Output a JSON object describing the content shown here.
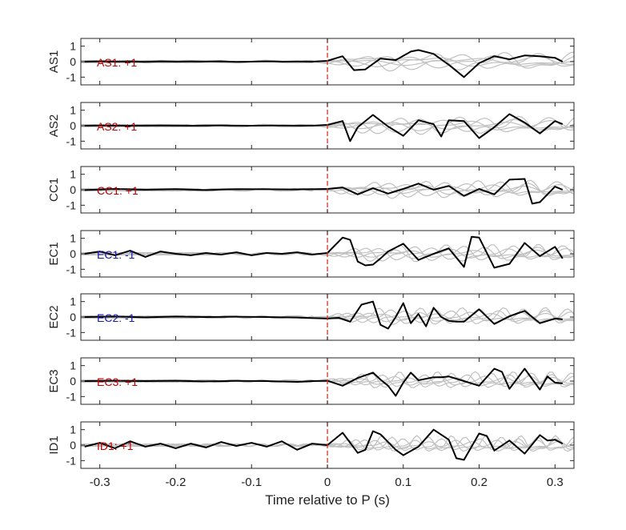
{
  "chart_data": {
    "type": "line",
    "xlabel": "Time relative to P (s)",
    "xlim": [
      -0.325,
      0.325
    ],
    "xticks": [
      -0.3,
      -0.2,
      -0.1,
      0,
      0.1,
      0.2,
      0.3
    ],
    "xtick_labels": [
      "-0.3",
      "-0.2",
      "-0.1",
      "0",
      "0.1",
      "0.2",
      "0.3"
    ],
    "ylim": [
      -1.5,
      1.5
    ],
    "yticks": [
      -1,
      0,
      1
    ],
    "ytick_labels": [
      "-1",
      "0",
      "1"
    ],
    "grid": false,
    "marker_line": {
      "x": 0,
      "color": "#e03020",
      "style": "dashed"
    },
    "colors": {
      "main": "#000000",
      "background_traces": "#c0c0c0",
      "positive_label": "#c00000",
      "negative_label": "#1a1aaa"
    },
    "panels": [
      {
        "station": "AS1",
        "annotation": "AS1: +1",
        "polarity": "+1",
        "x": [
          -0.32,
          -0.3,
          -0.28,
          -0.26,
          -0.24,
          -0.22,
          -0.2,
          -0.18,
          -0.16,
          -0.14,
          -0.12,
          -0.1,
          -0.08,
          -0.06,
          -0.04,
          -0.02,
          0,
          0.02,
          0.035,
          0.05,
          0.07,
          0.09,
          0.11,
          0.12,
          0.14,
          0.16,
          0.18,
          0.2,
          0.22,
          0.24,
          0.26,
          0.28,
          0.3,
          0.31
        ],
        "y": [
          0,
          0.02,
          0,
          0.01,
          -0.01,
          0.02,
          0,
          0.01,
          0,
          0.02,
          -0.01,
          0,
          0.02,
          0,
          0.01,
          0,
          0.05,
          0.35,
          -0.55,
          -0.5,
          0.2,
          0.1,
          0.65,
          0.75,
          0.5,
          -0.2,
          -1.0,
          -0.1,
          0.35,
          0.15,
          0.4,
          0.35,
          0.25,
          0.0
        ]
      },
      {
        "station": "AS2",
        "annotation": "AS2: +1",
        "polarity": "+1",
        "x": [
          -0.32,
          -0.3,
          -0.26,
          -0.22,
          -0.18,
          -0.14,
          -0.1,
          -0.06,
          -0.02,
          0,
          0.02,
          0.03,
          0.04,
          0.06,
          0.08,
          0.1,
          0.12,
          0.14,
          0.15,
          0.16,
          0.18,
          0.2,
          0.22,
          0.24,
          0.26,
          0.28,
          0.3,
          0.31
        ],
        "y": [
          0,
          0.01,
          0,
          0.01,
          0,
          0.01,
          0,
          0.01,
          0,
          0.05,
          0.3,
          -1.0,
          -0.1,
          0.7,
          -0.05,
          -0.65,
          0.35,
          0.1,
          -0.7,
          0.35,
          0.3,
          -0.8,
          -0.1,
          0.75,
          0.2,
          -0.5,
          0.3,
          0.1
        ]
      },
      {
        "station": "CC1",
        "annotation": "CC1: +1",
        "polarity": "+1",
        "x": [
          -0.32,
          -0.28,
          -0.24,
          -0.2,
          -0.16,
          -0.12,
          -0.08,
          -0.04,
          0,
          0.02,
          0.04,
          0.06,
          0.08,
          0.1,
          0.12,
          0.14,
          0.16,
          0.18,
          0.2,
          0.22,
          0.24,
          0.26,
          0.27,
          0.28,
          0.3,
          0.31
        ],
        "y": [
          -0.02,
          0.05,
          0,
          0.04,
          -0.02,
          0.04,
          0.03,
          0.02,
          0.05,
          0.15,
          -0.3,
          0.1,
          -0.25,
          0.05,
          0.4,
          0.0,
          0.25,
          -0.4,
          0.05,
          -0.3,
          0.65,
          0.7,
          -0.9,
          -0.8,
          0.2,
          0.0
        ]
      },
      {
        "station": "EC1",
        "annotation": "EC1: -1",
        "polarity": "-1",
        "x": [
          -0.32,
          -0.3,
          -0.28,
          -0.26,
          -0.24,
          -0.22,
          -0.2,
          -0.18,
          -0.16,
          -0.14,
          -0.12,
          -0.1,
          -0.08,
          -0.06,
          -0.04,
          -0.02,
          0,
          0.02,
          0.03,
          0.04,
          0.05,
          0.06,
          0.07,
          0.08,
          0.1,
          0.12,
          0.14,
          0.16,
          0.18,
          0.19,
          0.2,
          0.22,
          0.24,
          0.26,
          0.28,
          0.3,
          0.31
        ],
        "y": [
          0.0,
          0.15,
          -0.1,
          0.2,
          -0.2,
          0.15,
          0.0,
          -0.1,
          0.05,
          -0.05,
          0.1,
          -0.1,
          0.05,
          0.0,
          0.1,
          -0.05,
          0.05,
          1.05,
          0.9,
          -0.5,
          -0.75,
          -0.7,
          -0.3,
          0.15,
          0.65,
          -0.4,
          0.0,
          0.35,
          -0.85,
          1.1,
          1.05,
          -0.9,
          -0.65,
          0.7,
          -0.15,
          0.45,
          -0.3
        ]
      },
      {
        "station": "EC2",
        "annotation": "EC2: -1",
        "polarity": "-1",
        "x": [
          -0.32,
          -0.28,
          -0.24,
          -0.2,
          -0.16,
          -0.12,
          -0.08,
          -0.04,
          0,
          0.015,
          0.03,
          0.045,
          0.06,
          0.07,
          0.08,
          0.09,
          0.1,
          0.11,
          0.12,
          0.13,
          0.14,
          0.15,
          0.16,
          0.17,
          0.18,
          0.2,
          0.22,
          0.24,
          0.26,
          0.28,
          0.3,
          0.31
        ],
        "y": [
          0.0,
          0.03,
          -0.02,
          0.03,
          0.0,
          0.02,
          0.0,
          -0.03,
          -0.1,
          -0.05,
          -0.3,
          0.8,
          1.0,
          -0.5,
          -0.75,
          0.0,
          0.9,
          -0.4,
          0.2,
          -0.6,
          0.6,
          0.0,
          -0.25,
          -0.3,
          -0.3,
          0.5,
          -0.45,
          0.05,
          0.4,
          -0.4,
          -0.1,
          -0.15
        ]
      },
      {
        "station": "EC3",
        "annotation": "EC3: +1",
        "polarity": "+1",
        "x": [
          -0.32,
          -0.28,
          -0.24,
          -0.2,
          -0.16,
          -0.12,
          -0.08,
          -0.04,
          -0.02,
          0,
          0.02,
          0.04,
          0.06,
          0.07,
          0.08,
          0.09,
          0.1,
          0.11,
          0.12,
          0.14,
          0.15,
          0.16,
          0.18,
          0.2,
          0.22,
          0.23,
          0.24,
          0.26,
          0.28,
          0.29,
          0.3,
          0.31
        ],
        "y": [
          0,
          0.02,
          0,
          0.02,
          -0.02,
          0.01,
          0.0,
          -0.05,
          0.0,
          0.02,
          -0.3,
          0.2,
          0.55,
          0.1,
          -0.3,
          -0.95,
          -0.1,
          0.55,
          0.05,
          0.25,
          0.25,
          0.3,
          0.0,
          -0.3,
          0.8,
          0.6,
          -0.5,
          0.8,
          -0.55,
          0.3,
          -0.1,
          -0.15
        ]
      },
      {
        "station": "ID1",
        "annotation": "ID1: +1",
        "polarity": "+1",
        "x": [
          -0.32,
          -0.3,
          -0.28,
          -0.26,
          -0.24,
          -0.22,
          -0.2,
          -0.18,
          -0.16,
          -0.14,
          -0.12,
          -0.1,
          -0.08,
          -0.06,
          -0.04,
          -0.02,
          0,
          0.02,
          0.04,
          0.05,
          0.06,
          0.07,
          0.09,
          0.1,
          0.12,
          0.14,
          0.16,
          0.17,
          0.18,
          0.2,
          0.21,
          0.22,
          0.24,
          0.26,
          0.28,
          0.29,
          0.3,
          0.31
        ],
        "y": [
          -0.1,
          0.15,
          -0.2,
          0.25,
          -0.1,
          0.1,
          -0.2,
          0.1,
          -0.15,
          0.2,
          -0.05,
          0.15,
          -0.1,
          0.25,
          -0.3,
          0.1,
          0.0,
          0.8,
          -0.5,
          -0.3,
          0.9,
          0.7,
          -0.3,
          -0.65,
          -0.1,
          1.0,
          0.35,
          -0.85,
          -0.95,
          0.75,
          0.6,
          -0.35,
          0.3,
          -0.55,
          0.65,
          0.3,
          0.35,
          0.1
        ]
      }
    ]
  }
}
